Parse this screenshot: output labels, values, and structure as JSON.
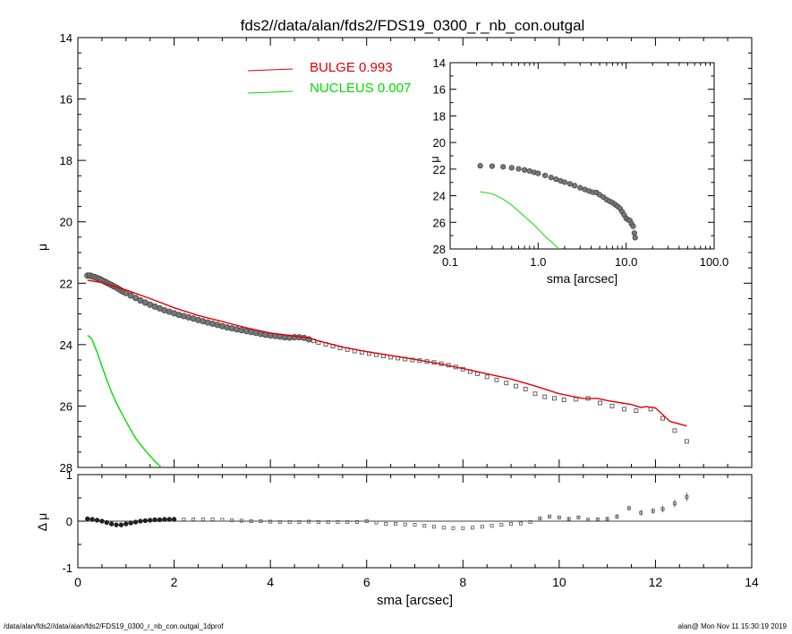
{
  "title": "fds2//data/alan/fds2/FDS19_0300_r_nb_con.outgal",
  "footer": {
    "left": "/data/alan/fds2//data/alan/fds2/FDS19_0300_r_nb_con.outgal_1dprof",
    "right": "alan@  Mon Nov 11 15:30:19 2019"
  },
  "colors": {
    "bulge": "#e00000",
    "nucleus": "#00dd00",
    "data": "#000000"
  },
  "chart_data": [
    {
      "type": "line",
      "panel": "main",
      "xlabel": "",
      "ylabel": "μ",
      "xlim": [
        0,
        14
      ],
      "ylim": [
        28,
        14
      ],
      "y_inverted": true,
      "xticks": [
        "0",
        "2",
        "4",
        "6",
        "8",
        "10",
        "12",
        "14"
      ],
      "yticks": [
        "14",
        "16",
        "18",
        "20",
        "22",
        "24",
        "26",
        "28"
      ],
      "legend": {
        "placement": "top-center",
        "entries": [
          {
            "label": "BULGE  0.993",
            "color": "#e00000"
          },
          {
            "label": "NUCLEUS  0.007",
            "color": "#00dd00"
          }
        ]
      },
      "series": [
        {
          "kind": "points",
          "x": [
            0.2,
            0.25,
            0.3,
            0.35,
            0.4,
            0.45,
            0.5,
            0.55,
            0.6,
            0.65,
            0.7,
            0.75,
            0.8,
            0.85,
            0.9,
            0.95,
            1.0,
            1.1,
            1.2,
            1.3,
            1.4,
            1.5,
            1.6,
            1.7,
            1.8,
            1.9,
            2.0,
            2.1,
            2.2,
            2.3,
            2.4,
            2.5,
            2.6,
            2.7,
            2.8,
            2.9,
            3.0,
            3.1,
            3.2,
            3.3,
            3.4,
            3.5,
            3.6,
            3.7,
            3.8,
            3.9,
            4.0,
            4.1,
            4.2,
            4.3,
            4.4,
            4.5,
            4.6,
            4.7,
            4.8,
            4.9,
            5.0,
            5.15,
            5.3,
            5.45,
            5.6,
            5.75,
            5.9,
            6.05,
            6.2,
            6.35,
            6.5,
            6.65,
            6.8,
            6.95,
            7.1,
            7.25,
            7.4,
            7.55,
            7.7,
            7.85,
            8.0,
            8.15,
            8.3,
            8.5,
            8.7,
            8.9,
            9.1,
            9.3,
            9.5,
            9.7,
            9.9,
            10.1,
            10.35,
            10.6,
            10.85,
            11.1,
            11.35,
            11.6,
            11.9,
            12.15,
            12.4,
            12.65
          ],
          "y": [
            21.75,
            21.75,
            21.78,
            21.8,
            21.83,
            21.86,
            21.9,
            21.94,
            21.98,
            22.02,
            22.06,
            22.1,
            22.14,
            22.19,
            22.24,
            22.28,
            22.32,
            22.4,
            22.48,
            22.56,
            22.63,
            22.7,
            22.76,
            22.82,
            22.88,
            22.93,
            22.98,
            23.03,
            23.07,
            23.11,
            23.15,
            23.2,
            23.24,
            23.28,
            23.32,
            23.36,
            23.4,
            23.44,
            23.47,
            23.5,
            23.53,
            23.56,
            23.59,
            23.62,
            23.65,
            23.68,
            23.7,
            23.72,
            23.74,
            23.76,
            23.77,
            23.76,
            23.76,
            23.78,
            23.83,
            23.88,
            23.93,
            23.99,
            24.05,
            24.11,
            24.16,
            24.21,
            24.25,
            24.29,
            24.33,
            24.37,
            24.41,
            24.44,
            24.47,
            24.5,
            24.52,
            24.55,
            24.58,
            24.62,
            24.67,
            24.73,
            24.8,
            24.88,
            24.95,
            25.05,
            25.15,
            25.25,
            25.35,
            25.45,
            25.6,
            25.7,
            25.75,
            25.8,
            25.78,
            25.75,
            25.9,
            26.0,
            26.1,
            26.15,
            26.1,
            26.4,
            26.8,
            27.15
          ]
        },
        {
          "name": "BULGE",
          "kind": "line",
          "color": "#e00000",
          "x": [
            0.2,
            0.5,
            1.0,
            1.5,
            2.0,
            2.5,
            3.0,
            3.5,
            4.0,
            4.5,
            4.8,
            5.0,
            5.5,
            6.0,
            6.5,
            7.0,
            7.5,
            8.0,
            8.5,
            9.0,
            9.5,
            10.0,
            10.5,
            10.8,
            11.0,
            11.3,
            11.5,
            11.7,
            11.8,
            12.0,
            12.3,
            12.65
          ],
          "y": [
            21.9,
            21.98,
            22.22,
            22.5,
            22.8,
            23.05,
            23.25,
            23.45,
            23.62,
            23.72,
            23.78,
            23.88,
            24.08,
            24.23,
            24.35,
            24.48,
            24.62,
            24.78,
            24.95,
            25.12,
            25.35,
            25.6,
            25.75,
            25.75,
            25.82,
            25.9,
            25.95,
            26.05,
            26.02,
            26.06,
            26.5,
            26.65
          ]
        },
        {
          "name": "NUCLEUS",
          "kind": "line",
          "color": "#00dd00",
          "x": [
            0.2,
            0.25,
            0.3,
            0.4,
            0.5,
            0.6,
            0.7,
            0.8,
            0.9,
            1.0,
            1.2,
            1.4,
            1.6,
            1.8,
            1.9
          ],
          "y": [
            23.7,
            23.75,
            23.85,
            24.25,
            24.7,
            25.15,
            25.55,
            25.9,
            26.2,
            26.5,
            27.05,
            27.45,
            27.8,
            28.1,
            28.2
          ]
        }
      ]
    },
    {
      "type": "scatter",
      "panel": "residual",
      "xlabel": "sma [arcsec]",
      "ylabel": "Δ μ",
      "xlim": [
        0,
        14
      ],
      "ylim": [
        -1,
        1
      ],
      "xticks": [
        "0",
        "2",
        "4",
        "6",
        "8",
        "10",
        "12",
        "14"
      ],
      "yticks": [
        "-1",
        "0",
        "1"
      ],
      "zero_line": true,
      "series": [
        {
          "kind": "points",
          "x": [
            0.2,
            0.3,
            0.4,
            0.5,
            0.6,
            0.7,
            0.8,
            0.9,
            1.0,
            1.1,
            1.2,
            1.3,
            1.4,
            1.5,
            1.6,
            1.7,
            1.8,
            1.9,
            2.0,
            2.2,
            2.4,
            2.6,
            2.8,
            3.0,
            3.2,
            3.4,
            3.6,
            3.8,
            4.0,
            4.2,
            4.4,
            4.6,
            4.8,
            5.0,
            5.2,
            5.4,
            5.6,
            5.8,
            6.0,
            6.2,
            6.4,
            6.6,
            6.8,
            7.0,
            7.2,
            7.4,
            7.6,
            7.8,
            8.0,
            8.2,
            8.4,
            8.6,
            8.8,
            9.0,
            9.2,
            9.4,
            9.6,
            9.8,
            10.0,
            10.2,
            10.4,
            10.6,
            10.8,
            11.0,
            11.2,
            11.45,
            11.7,
            11.95,
            12.15,
            12.4,
            12.65
          ],
          "y": [
            0.05,
            0.04,
            0.02,
            0.0,
            -0.03,
            -0.06,
            -0.08,
            -0.08,
            -0.06,
            -0.04,
            -0.02,
            0.0,
            0.01,
            0.02,
            0.03,
            0.03,
            0.04,
            0.04,
            0.04,
            0.04,
            0.04,
            0.04,
            0.04,
            0.03,
            0.02,
            0.01,
            0.0,
            0.0,
            -0.01,
            -0.02,
            -0.02,
            -0.02,
            -0.01,
            -0.02,
            -0.02,
            -0.02,
            -0.02,
            -0.02,
            0.0,
            -0.03,
            -0.06,
            -0.06,
            -0.07,
            -0.08,
            -0.1,
            -0.12,
            -0.14,
            -0.15,
            -0.15,
            -0.14,
            -0.12,
            -0.1,
            -0.08,
            -0.06,
            -0.05,
            -0.02,
            0.06,
            0.1,
            0.08,
            0.05,
            0.08,
            0.03,
            0.04,
            0.05,
            0.1,
            0.28,
            0.18,
            0.22,
            0.26,
            0.38,
            0.52
          ],
          "yerr": [
            0.01,
            0.01,
            0.01,
            0.01,
            0.01,
            0.01,
            0.01,
            0.01,
            0.01,
            0.01,
            0.01,
            0.01,
            0.01,
            0.01,
            0.01,
            0.01,
            0.01,
            0.01,
            0.01,
            0.01,
            0.01,
            0.01,
            0.01,
            0.01,
            0.01,
            0.01,
            0.01,
            0.01,
            0.01,
            0.01,
            0.01,
            0.01,
            0.01,
            0.01,
            0.01,
            0.01,
            0.01,
            0.01,
            0.01,
            0.01,
            0.01,
            0.01,
            0.01,
            0.01,
            0.01,
            0.01,
            0.01,
            0.01,
            0.01,
            0.01,
            0.01,
            0.01,
            0.01,
            0.01,
            0.01,
            0.01,
            0.02,
            0.02,
            0.02,
            0.03,
            0.03,
            0.03,
            0.04,
            0.04,
            0.05,
            0.05,
            0.06,
            0.06,
            0.07,
            0.08,
            0.09
          ]
        }
      ]
    },
    {
      "type": "line",
      "panel": "inset",
      "xlabel": "sma [arcsec]",
      "ylabel": "μ",
      "x_scale": "log",
      "xlim": [
        0.1,
        100.0
      ],
      "ylim": [
        28,
        14
      ],
      "y_inverted": true,
      "xticks": [
        "0.1",
        "1.0",
        "10.0",
        "100.0"
      ],
      "yticks": [
        "14",
        "16",
        "18",
        "20",
        "22",
        "24",
        "26",
        "28"
      ],
      "series": [
        {
          "kind": "points",
          "x": [
            0.22,
            0.3,
            0.4,
            0.5,
            0.6,
            0.7,
            0.8,
            0.9,
            1.0,
            1.2,
            1.4,
            1.6,
            1.8,
            2.0,
            2.3,
            2.6,
            3.0,
            3.4,
            3.8,
            4.2,
            4.6,
            5.0,
            5.5,
            6.0,
            6.5,
            7.0,
            7.5,
            8.0,
            8.5,
            9.0,
            9.5,
            10.0,
            10.5,
            11.0,
            11.5,
            12.0,
            12.4,
            12.65
          ],
          "y": [
            21.75,
            21.78,
            21.83,
            21.9,
            21.98,
            22.06,
            22.14,
            22.24,
            22.32,
            22.48,
            22.63,
            22.76,
            22.88,
            22.98,
            23.11,
            23.24,
            23.4,
            23.53,
            23.65,
            23.74,
            23.76,
            23.93,
            24.1,
            24.29,
            24.41,
            24.52,
            24.67,
            24.8,
            24.95,
            25.2,
            25.45,
            25.7,
            25.8,
            25.85,
            26.1,
            26.3,
            26.8,
            27.15
          ]
        },
        {
          "name": "NUCLEUS",
          "kind": "line",
          "color": "#00dd00",
          "x": [
            0.22,
            0.3,
            0.4,
            0.5,
            0.6,
            0.7,
            0.8,
            0.9,
            1.0,
            1.2,
            1.4,
            1.6,
            1.8
          ],
          "y": [
            23.7,
            23.85,
            24.25,
            24.7,
            25.15,
            25.55,
            25.9,
            26.2,
            26.5,
            27.05,
            27.45,
            27.8,
            28.1
          ]
        }
      ]
    }
  ]
}
